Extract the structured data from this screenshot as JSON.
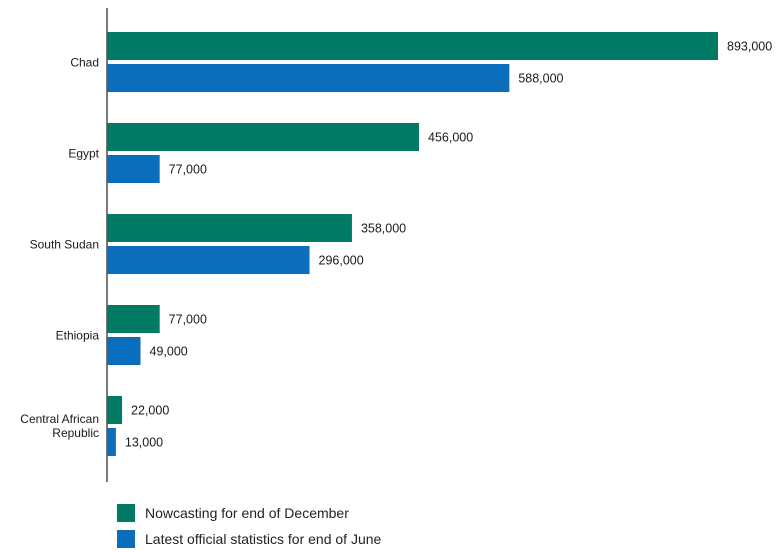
{
  "chart_data": {
    "type": "bar",
    "orientation": "horizontal",
    "categories": [
      "Chad",
      "Egypt",
      "South Sudan",
      "Ethiopia",
      "Central African Republic"
    ],
    "series": [
      {
        "name": "Nowcasting for end of December",
        "color": "#007a64",
        "values": [
          893000,
          456000,
          358000,
          77000,
          22000
        ],
        "labels": [
          "893,000",
          "456,000",
          "358,000",
          "77,000",
          "22,000"
        ]
      },
      {
        "name": "Latest official statistics for end of June",
        "color": "#0a6ebd",
        "values": [
          588000,
          77000,
          296000,
          49000,
          13000
        ],
        "labels": [
          "588,000",
          "77,000",
          "296,000",
          "49,000",
          "13,000"
        ]
      }
    ],
    "title": "",
    "xlabel": "",
    "ylabel": "",
    "xlim": [
      0,
      893000
    ],
    "grid": false,
    "legend": "bottom-left"
  },
  "legend": {
    "items": [
      {
        "label": "Nowcasting for end of December",
        "color": "#007a64"
      },
      {
        "label": "Latest official statistics for end of June",
        "color": "#0a6ebd"
      }
    ]
  }
}
